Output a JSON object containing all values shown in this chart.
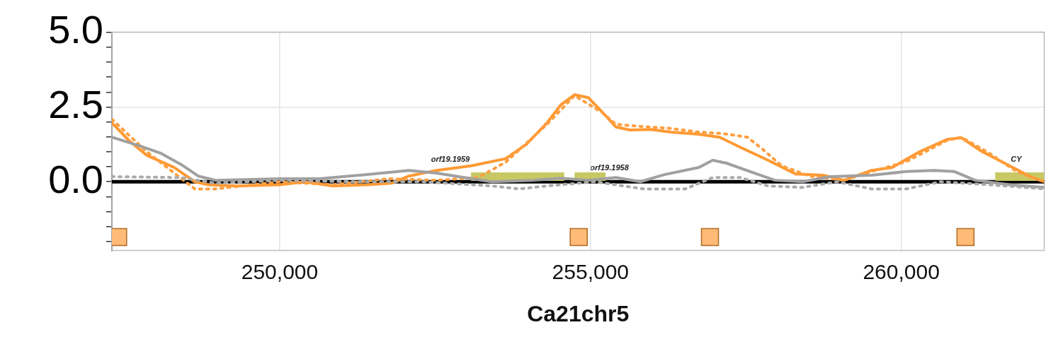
{
  "chart_data": {
    "type": "line",
    "xlabel": "Ca21chr5",
    "xlim": [
      247300,
      262300
    ],
    "ylim": [
      -2.3,
      5.0
    ],
    "xticks": [
      {
        "value": 250000,
        "label": "250,000"
      },
      {
        "value": 255000,
        "label": "255,000"
      },
      {
        "value": 260000,
        "label": "260,000"
      }
    ],
    "yticks": [
      {
        "value": -2.0,
        "label": null
      },
      {
        "value": -1.5,
        "label": null
      },
      {
        "value": -1.0,
        "label": null
      },
      {
        "value": -0.5,
        "label": null
      },
      {
        "value": 0,
        "label": "0.0"
      },
      {
        "value": 0.5,
        "label": null
      },
      {
        "value": 1.0,
        "label": null
      },
      {
        "value": 1.5,
        "label": null
      },
      {
        "value": 2.0,
        "label": null
      },
      {
        "value": 2.5,
        "label": "2.5"
      },
      {
        "value": 3.0,
        "label": null
      },
      {
        "value": 3.5,
        "label": null
      },
      {
        "value": 4.0,
        "label": null
      },
      {
        "value": 4.5,
        "label": null
      },
      {
        "value": 5.0,
        "label": "5.0"
      }
    ],
    "grid": true,
    "marker": "none",
    "ref_lines": [
      {
        "axis": "y",
        "value": 0,
        "color": "#000000"
      }
    ],
    "series": [
      {
        "type": "line",
        "color": "#aaaaaa",
        "line_style": "dotted",
        "x": [
          247300,
          248411,
          248967,
          250000,
          251189,
          252300,
          253411,
          253856,
          254300,
          255078,
          255856,
          256522,
          256967,
          257411,
          257856,
          258411,
          258967,
          259522,
          260078,
          260633,
          261411,
          262300
        ],
        "values": [
          0.17,
          0.14,
          -0.05,
          0.05,
          0,
          0,
          -0.14,
          -0.24,
          -0.14,
          0,
          -0.24,
          -0.24,
          0.14,
          0.14,
          -0.14,
          -0.19,
          0,
          -0.24,
          -0.24,
          0,
          -0.1,
          -0.24
        ]
      },
      {
        "type": "line",
        "color": "#a0a0a0",
        "line_style": "solid",
        "x": [
          247300,
          247744,
          248078,
          248411,
          248689,
          248967,
          250000,
          250633,
          251411,
          252078,
          252522,
          252967,
          253411,
          254078,
          254522,
          254967,
          255411,
          255800,
          256189,
          256744,
          256967,
          257189,
          257633,
          257967,
          258411,
          258856,
          259522,
          260078,
          260522,
          260855,
          261189,
          261744,
          262300
        ],
        "values": [
          1.49,
          1.2,
          0.96,
          0.58,
          0.19,
          0.05,
          0.1,
          0.1,
          0.24,
          0.38,
          0.29,
          0.14,
          0,
          0.05,
          0.12,
          0.05,
          0.14,
          0,
          0.24,
          0.48,
          0.72,
          0.62,
          0.29,
          0.05,
          0,
          0.17,
          0.22,
          0.34,
          0.38,
          0.34,
          0.05,
          -0.1,
          -0.19
        ]
      },
      {
        "type": "line",
        "color": "#ff9f40",
        "line_style": "dotted",
        "x": [
          247300,
          247856,
          248633,
          248967,
          250000,
          250856,
          251744,
          252522,
          253189,
          253633,
          254300,
          254744,
          255189,
          255411,
          255633,
          256300,
          256744,
          257133,
          257522,
          257745,
          258078,
          258522,
          259078,
          259522,
          260078,
          260744,
          260967,
          261411,
          261856,
          262300
        ],
        "values": [
          2.09,
          1.01,
          -0.24,
          -0.24,
          0,
          -0.1,
          0.1,
          0.05,
          0.14,
          0.65,
          1.92,
          2.88,
          2.31,
          1.92,
          1.88,
          1.78,
          1.66,
          1.61,
          1.49,
          1.13,
          0.53,
          0.19,
          0.05,
          0.34,
          0.67,
          1.39,
          1.49,
          0.96,
          0.34,
          0
        ]
      },
      {
        "type": "line",
        "color": "#ff9933",
        "line_style": "solid",
        "x": [
          247300,
          247578,
          247856,
          248300,
          248633,
          248856,
          249300,
          250000,
          250411,
          250856,
          251411,
          251800,
          252078,
          252522,
          253078,
          253633,
          253967,
          254300,
          254522,
          254744,
          254967,
          255189,
          255411,
          255633,
          255967,
          256300,
          256744,
          257078,
          257411,
          257856,
          258300,
          258744,
          259078,
          259522,
          259856,
          260300,
          260744,
          260967,
          261300,
          261744,
          262078,
          262300
        ],
        "values": [
          1.97,
          1.37,
          0.89,
          0.48,
          0,
          -0.1,
          -0.14,
          -0.1,
          0,
          -0.14,
          -0.1,
          -0.05,
          0.19,
          0.38,
          0.53,
          0.77,
          1.25,
          1.97,
          2.57,
          2.91,
          2.81,
          2.33,
          1.83,
          1.73,
          1.75,
          1.66,
          1.59,
          1.49,
          1.15,
          0.72,
          0.26,
          0.22,
          0.05,
          0.38,
          0.48,
          1.01,
          1.42,
          1.47,
          1.01,
          0.53,
          0.17,
          0
        ]
      },
      {
        "type": "line",
        "name": "orf19.1959",
        "color": "#c8c864",
        "line_style": "solid",
        "x": [
          253078,
          254578
        ],
        "values": [
          0.17,
          0.17
        ]
      },
      {
        "type": "line",
        "name": "orf19.1958",
        "color": "#c8c864",
        "line_style": "solid",
        "x": [
          254744,
          255244
        ],
        "values": [
          0.17,
          0.17
        ]
      },
      {
        "type": "line",
        "name": "CY",
        "color": "#c8c864",
        "line_style": "solid",
        "x": [
          261511,
          262300
        ],
        "values": [
          0.17,
          0.17
        ]
      },
      {
        "type": "scatter",
        "color": "#ffbb77",
        "marker": "square",
        "x": [
          247400,
          254811,
          256922,
          261033
        ],
        "values": [
          -1.85,
          -1.85,
          -1.85,
          -1.85
        ]
      }
    ]
  }
}
